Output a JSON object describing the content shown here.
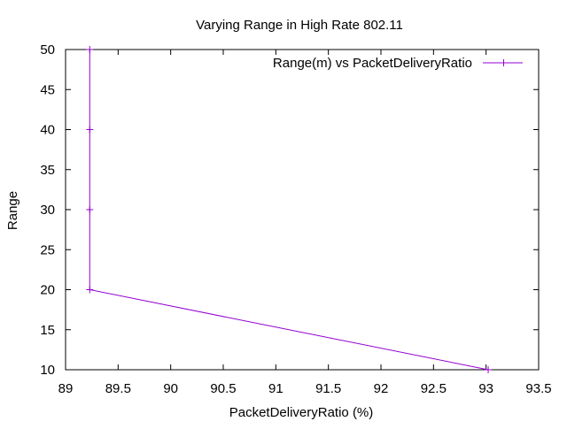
{
  "chart_data": {
    "type": "line",
    "title": "Varying Range in High Rate 802.11",
    "xlabel": "PacketDeliveryRatio (%)",
    "ylabel": "Range",
    "xlim": [
      89,
      93.5
    ],
    "ylim": [
      10,
      50
    ],
    "xticks": [
      "89",
      "89.5",
      "90",
      "90.5",
      "91",
      "91.5",
      "92",
      "92.5",
      "93",
      "93.5"
    ],
    "yticks": [
      "10",
      "15",
      "20",
      "25",
      "30",
      "35",
      "40",
      "45",
      "50"
    ],
    "grid": false,
    "legend_position": "top-right",
    "series": [
      {
        "name": "Range(m) vs PacketDeliveryRatio",
        "color": "#9400d3",
        "marker": "plus",
        "x": [
          93.02,
          89.23,
          89.23,
          89.23,
          89.23
        ],
        "y": [
          10,
          20,
          30,
          40,
          50
        ]
      }
    ]
  }
}
